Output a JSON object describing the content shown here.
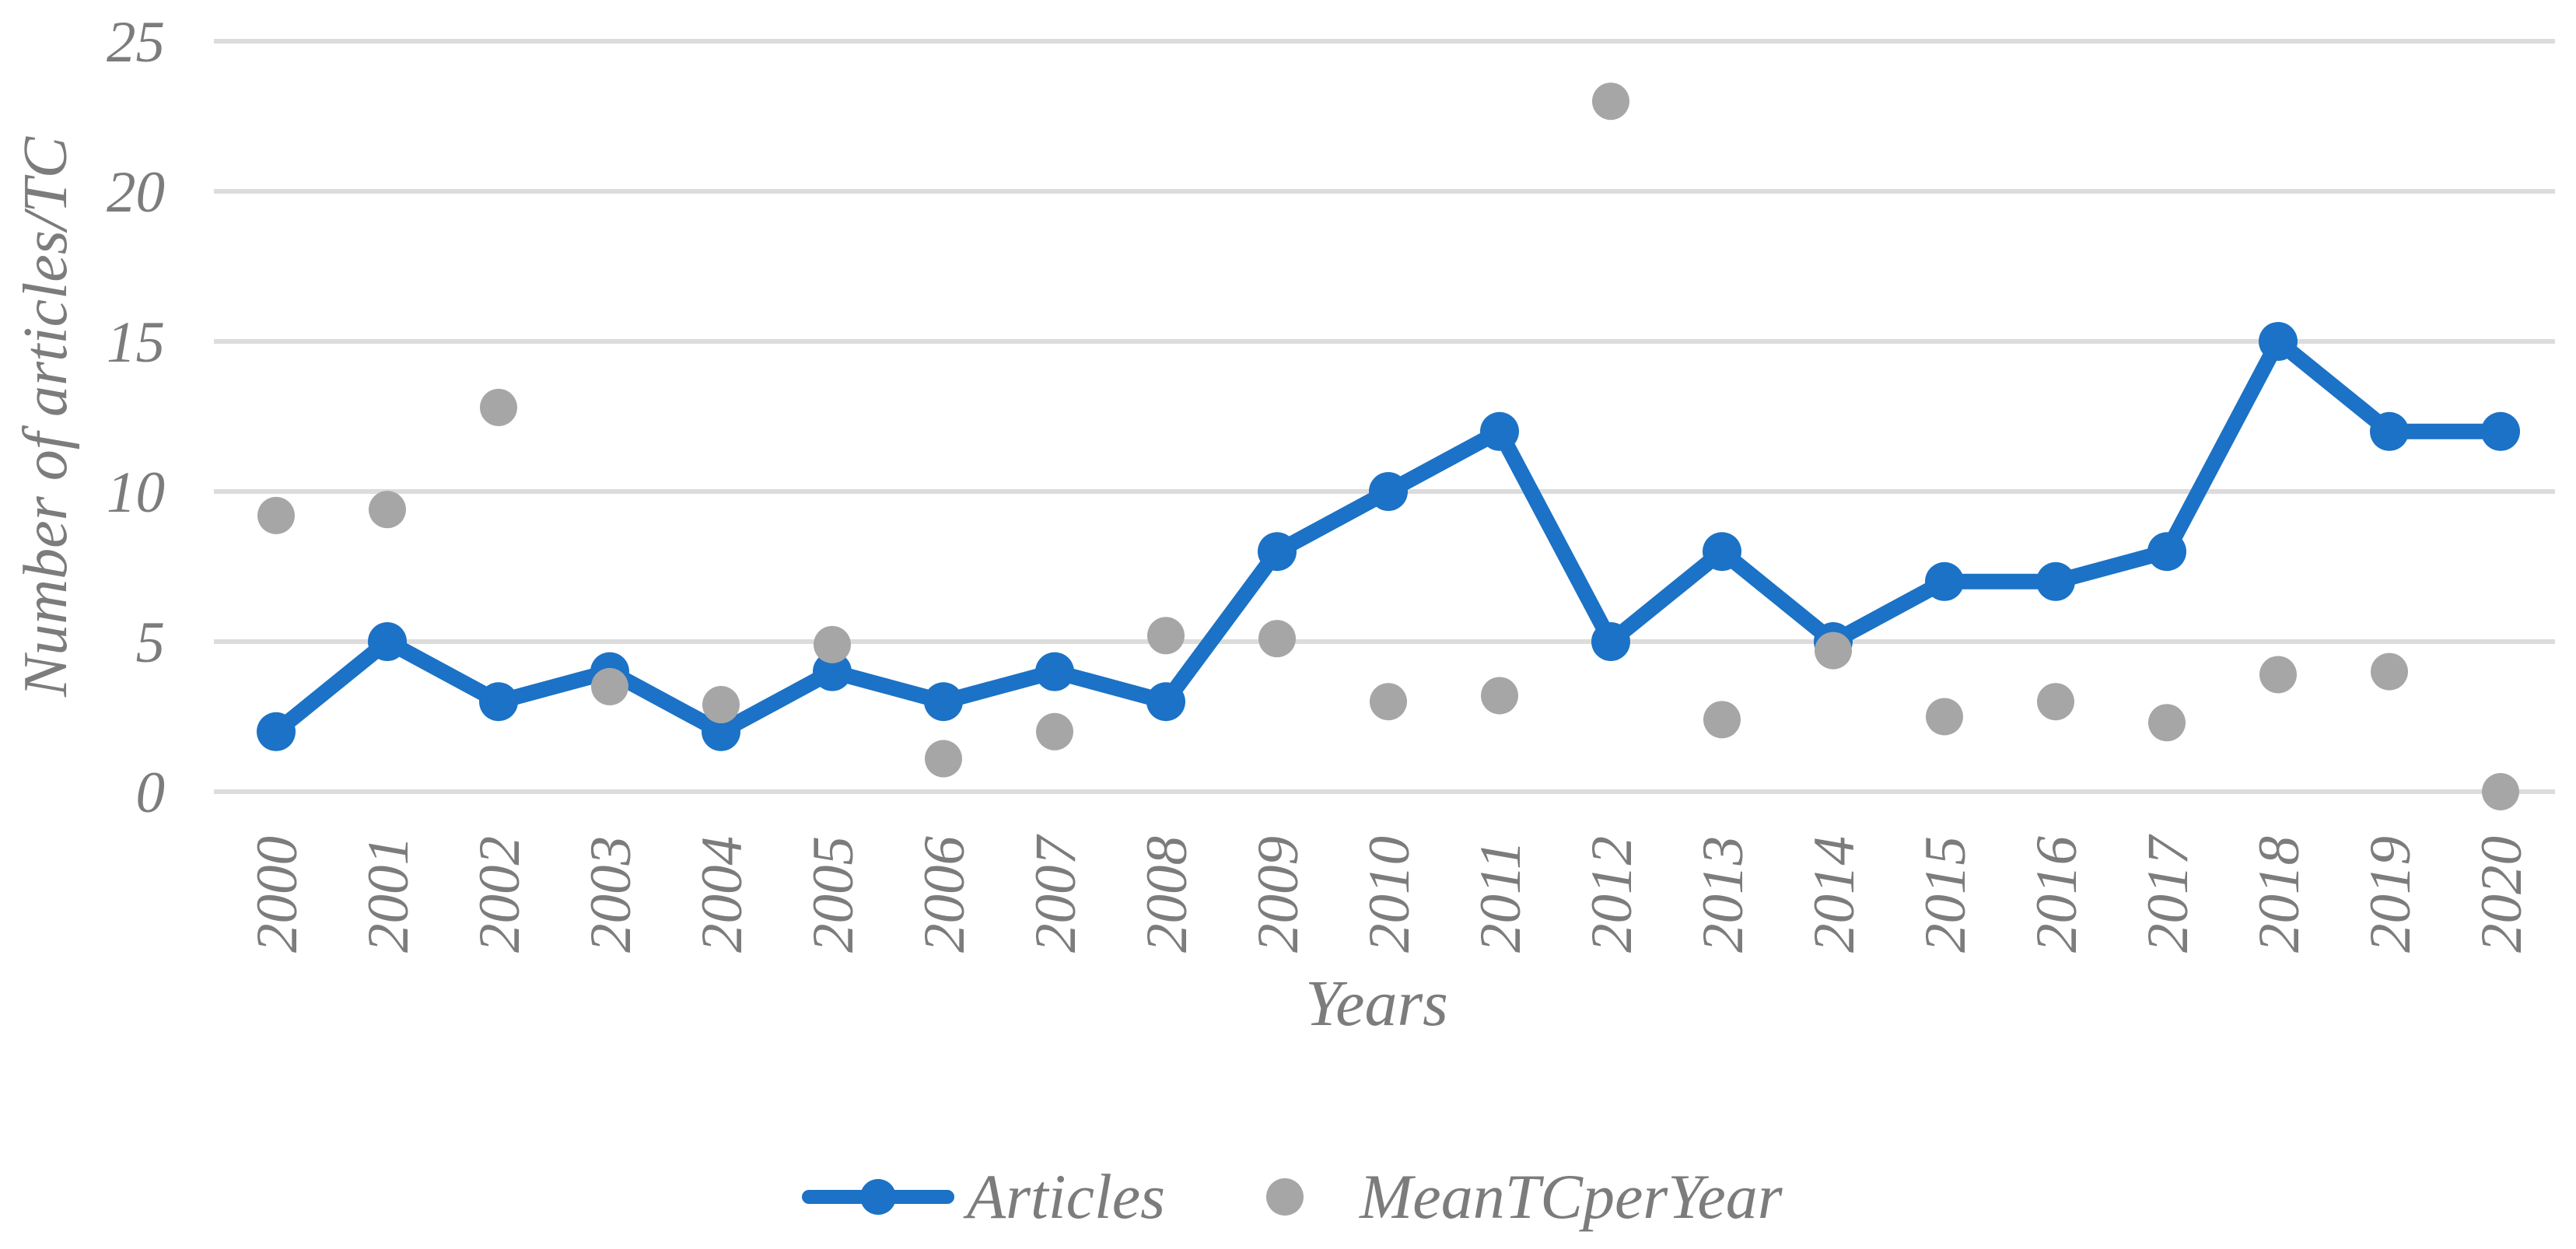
{
  "chart_data": {
    "type": "line",
    "title": "",
    "categories": [
      "2000",
      "2001",
      "2002",
      "2003",
      "2004",
      "2005",
      "2006",
      "2007",
      "2008",
      "2009",
      "2010",
      "2011",
      "2012",
      "2013",
      "2014",
      "2015",
      "2016",
      "2017",
      "2018",
      "2019",
      "2020"
    ],
    "series": [
      {
        "name": "Articles",
        "type": "line-with-markers",
        "color": "#1B72C6",
        "values": [
          2,
          5,
          3,
          4,
          2,
          4,
          3,
          4,
          3,
          8,
          10,
          12,
          5,
          8,
          5,
          7,
          7,
          8,
          15,
          12,
          12
        ]
      },
      {
        "name": "MeanTCperYear",
        "type": "scatter",
        "color": "#A6A6A6",
        "values": [
          9.2,
          9.4,
          12.8,
          3.5,
          2.9,
          4.9,
          1.1,
          2.0,
          5.2,
          5.1,
          3.0,
          3.2,
          23.0,
          2.4,
          4.7,
          2.5,
          3.0,
          2.3,
          3.9,
          4.0,
          0.0
        ]
      }
    ],
    "xlabel": "Years",
    "ylabel": "Number of articles/TC",
    "ylim": [
      0,
      25
    ],
    "yticks": [
      0,
      5,
      10,
      15,
      20,
      25
    ],
    "grid": "horizontal-only",
    "legend_position": "bottom-center"
  },
  "style": {
    "accent_blue": "#1B72C6",
    "marker_gray": "#A6A6A6",
    "gridline_color": "#DCDCDC",
    "text_color": "#7C7C7C",
    "background": "#FFFFFF"
  }
}
